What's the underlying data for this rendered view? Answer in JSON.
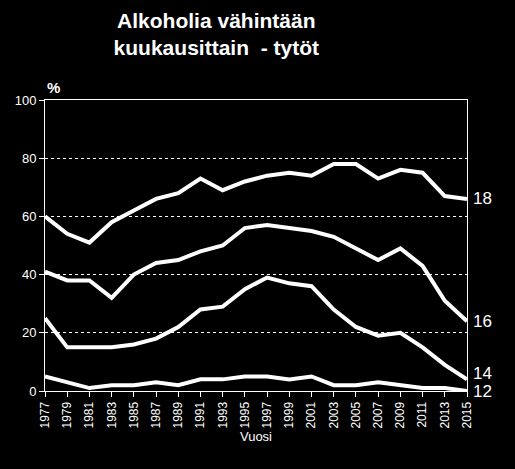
{
  "chart_data": {
    "type": "line",
    "title": "Alkoholia vähintään kuukausittain  - tytöt",
    "xlabel": "Vuosi",
    "ylabel": "%",
    "x": [
      1977,
      1979,
      1981,
      1983,
      1985,
      1987,
      1989,
      1991,
      1993,
      1995,
      1997,
      1999,
      2001,
      2003,
      2005,
      2007,
      2009,
      2011,
      2013,
      2015
    ],
    "series": [
      {
        "name": "18",
        "color": "#ffffff",
        "values": [
          60,
          54,
          51,
          58,
          62,
          66,
          68,
          73,
          69,
          72,
          74,
          75,
          74,
          78,
          78,
          73,
          76,
          75,
          67,
          66
        ]
      },
      {
        "name": "16",
        "color": "#ffffff",
        "values": [
          41,
          38,
          38,
          32,
          40,
          44,
          45,
          48,
          50,
          56,
          57,
          56,
          55,
          53,
          49,
          45,
          49,
          43,
          31,
          24
        ]
      },
      {
        "name": "14",
        "color": "#ffffff",
        "values": [
          25,
          15,
          15,
          15,
          16,
          18,
          22,
          28,
          29,
          35,
          39,
          37,
          36,
          28,
          22,
          19,
          20,
          15,
          9,
          4
        ]
      },
      {
        "name": "12",
        "color": "#ffffff",
        "values": [
          5,
          3,
          1,
          2,
          2,
          3,
          2,
          4,
          4,
          5,
          5,
          4,
          5,
          2,
          2,
          3,
          2,
          1,
          1,
          0
        ]
      }
    ],
    "xlim": [
      1977,
      2015
    ],
    "xticks": [
      1977,
      1979,
      1981,
      1983,
      1985,
      1987,
      1989,
      1991,
      1993,
      1995,
      1997,
      1999,
      2001,
      2003,
      2005,
      2007,
      2009,
      2011,
      2013,
      2015
    ],
    "ylim": [
      0,
      100
    ],
    "yticks": [
      0,
      20,
      40,
      60,
      80,
      100
    ],
    "grid": true
  }
}
